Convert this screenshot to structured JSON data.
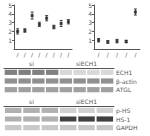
{
  "chart_data": [
    {
      "type": "scatter",
      "categories": [
        "/",
        "/",
        "/",
        "/",
        "/",
        "/",
        "/",
        "/"
      ],
      "values": [
        2.0,
        2.1,
        3.8,
        2.8,
        3.5,
        2.5,
        2.9,
        3.1
      ],
      "errors": [
        0.3,
        0.2,
        0.4,
        0.25,
        0.3,
        0.2,
        0.35,
        0.25
      ],
      "color": "#222222",
      "marker": "square",
      "ylim": [
        0,
        5
      ],
      "yticks": [
        1,
        2,
        3,
        4,
        5
      ],
      "grid": false
    },
    {
      "type": "scatter",
      "categories": [
        "/",
        "/",
        "/",
        "/",
        "/"
      ],
      "values": [
        1.0,
        0.8,
        0.9,
        0.85,
        4.2
      ],
      "errors": [
        0.2,
        0.15,
        0.2,
        0.15,
        0.35
      ],
      "color": "#222222",
      "marker": "square",
      "ylim": [
        0,
        5
      ],
      "yticks": [
        1,
        2,
        3,
        4,
        5
      ],
      "grid": false
    },
    {
      "type": "blot",
      "categories": [
        "ECH1",
        "β-actin",
        "ATGL"
      ],
      "series": [
        {
          "name": "si",
          "lanes": 4,
          "colors": [
            "#808080",
            "#909090",
            "#a0a0a0"
          ]
        },
        {
          "name": "siECH1",
          "lanes": 4,
          "colors": [
            "#d8d8d8",
            "#909090",
            "#a0a0a0"
          ]
        }
      ]
    },
    {
      "type": "blot",
      "categories": [
        "p-HS",
        "HS-1",
        "GAPDH"
      ],
      "series": [
        {
          "name": "si",
          "lanes": 3,
          "colors": [
            "#b0b0b0",
            "#b0b0b0",
            "#c8c8c8"
          ]
        },
        {
          "name": "siECH1",
          "lanes": 3,
          "colors": [
            "#d0d0d0",
            "#404040",
            "#c8c8c8"
          ]
        }
      ]
    }
  ]
}
